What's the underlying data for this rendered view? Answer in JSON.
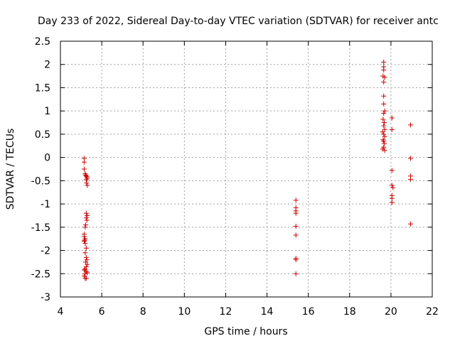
{
  "chart_data": {
    "type": "scatter",
    "title": "Day 233 of 2022, Sidereal Day-to-day VTEC variation (SDTVAR) for receiver antc",
    "xlabel": "GPS time / hours",
    "ylabel": "SDTVAR / TECUs",
    "xlim": [
      4,
      22
    ],
    "ylim": [
      -3,
      2.5
    ],
    "x_ticks": [
      4,
      6,
      8,
      10,
      12,
      14,
      16,
      18,
      20,
      22
    ],
    "x_tick_labels": [
      "4",
      "6",
      "8",
      "10",
      "12",
      "14",
      "16",
      "18",
      "20",
      "22"
    ],
    "y_ticks": [
      -3,
      -2.5,
      -2,
      -1.5,
      -1,
      -0.5,
      0,
      0.5,
      1,
      1.5,
      2,
      2.5
    ],
    "y_tick_labels": [
      "-3",
      "-2.5",
      "-2",
      "-1.5",
      "-1",
      "-0.5",
      "0",
      "0.5",
      "1",
      "1.5",
      "2",
      "2.5"
    ],
    "grid": true,
    "marker": "+",
    "marker_color": "#cc0000",
    "series": [
      {
        "name": "SDTVAR",
        "points": [
          [
            5.15,
            -0.02
          ],
          [
            5.15,
            -0.1
          ],
          [
            5.15,
            -0.25
          ],
          [
            5.2,
            -0.35
          ],
          [
            5.22,
            -0.38
          ],
          [
            5.25,
            -0.4
          ],
          [
            5.28,
            -0.42
          ],
          [
            5.25,
            -0.48
          ],
          [
            5.3,
            -0.45
          ],
          [
            5.27,
            -0.55
          ],
          [
            5.3,
            -0.6
          ],
          [
            5.15,
            -1.65
          ],
          [
            5.15,
            -1.7
          ],
          [
            5.2,
            -1.75
          ],
          [
            5.17,
            -1.78
          ],
          [
            5.15,
            -1.8
          ],
          [
            5.2,
            -1.85
          ],
          [
            5.25,
            -1.2
          ],
          [
            5.3,
            -1.25
          ],
          [
            5.25,
            -1.3
          ],
          [
            5.28,
            -1.35
          ],
          [
            5.22,
            -1.45
          ],
          [
            5.2,
            -1.5
          ],
          [
            5.25,
            -1.95
          ],
          [
            5.2,
            -2.05
          ],
          [
            5.25,
            -2.15
          ],
          [
            5.28,
            -2.2
          ],
          [
            5.22,
            -2.25
          ],
          [
            5.3,
            -2.3
          ],
          [
            5.25,
            -2.35
          ],
          [
            5.2,
            -2.4
          ],
          [
            5.15,
            -2.42
          ],
          [
            5.25,
            -2.45
          ],
          [
            5.3,
            -2.48
          ],
          [
            5.2,
            -2.5
          ],
          [
            5.15,
            -2.55
          ],
          [
            5.2,
            -2.6
          ],
          [
            5.25,
            -2.6
          ],
          [
            15.4,
            -0.92
          ],
          [
            15.4,
            -1.08
          ],
          [
            15.4,
            -1.15
          ],
          [
            15.4,
            -1.2
          ],
          [
            15.4,
            -1.48
          ],
          [
            15.4,
            -1.67
          ],
          [
            15.4,
            -2.17
          ],
          [
            15.4,
            -2.2
          ],
          [
            15.4,
            -2.5
          ],
          [
            19.65,
            2.05
          ],
          [
            19.65,
            1.95
          ],
          [
            19.65,
            1.88
          ],
          [
            19.62,
            1.75
          ],
          [
            19.7,
            1.72
          ],
          [
            19.65,
            1.62
          ],
          [
            19.65,
            1.32
          ],
          [
            19.65,
            1.15
          ],
          [
            19.7,
            1.0
          ],
          [
            19.65,
            0.95
          ],
          [
            19.62,
            0.82
          ],
          [
            19.68,
            0.75
          ],
          [
            19.65,
            0.68
          ],
          [
            19.7,
            0.6
          ],
          [
            19.6,
            0.55
          ],
          [
            19.65,
            0.5
          ],
          [
            19.7,
            0.45
          ],
          [
            19.62,
            0.38
          ],
          [
            19.65,
            0.35
          ],
          [
            19.68,
            0.3
          ],
          [
            19.65,
            0.22
          ],
          [
            19.6,
            0.18
          ],
          [
            19.7,
            0.15
          ],
          [
            20.05,
            0.85
          ],
          [
            20.05,
            0.6
          ],
          [
            20.05,
            -0.28
          ],
          [
            20.05,
            -0.6
          ],
          [
            20.1,
            -0.65
          ],
          [
            20.05,
            -0.82
          ],
          [
            20.05,
            -0.88
          ],
          [
            20.05,
            -0.97
          ],
          [
            20.95,
            0.7
          ],
          [
            20.95,
            -0.02
          ],
          [
            20.95,
            -0.4
          ],
          [
            20.95,
            -0.47
          ],
          [
            20.95,
            -1.43
          ]
        ]
      }
    ]
  }
}
